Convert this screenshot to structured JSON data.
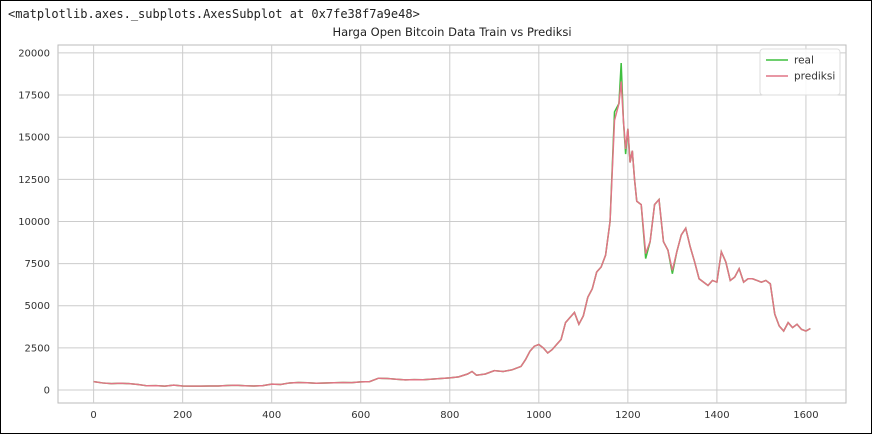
{
  "output_text": "<matplotlib.axes._subplots.AxesSubplot at 0x7fe38f7a9e48>",
  "chart_data": {
    "type": "line",
    "title": "Harga Open Bitcoin Data Train vs Prediksi",
    "x": [
      0,
      20,
      40,
      60,
      80,
      100,
      120,
      140,
      160,
      180,
      200,
      220,
      240,
      260,
      280,
      300,
      320,
      340,
      360,
      380,
      400,
      420,
      440,
      460,
      480,
      500,
      520,
      540,
      560,
      580,
      600,
      620,
      640,
      660,
      680,
      700,
      720,
      740,
      760,
      780,
      800,
      820,
      840,
      850,
      860,
      880,
      900,
      920,
      940,
      960,
      970,
      980,
      990,
      1000,
      1010,
      1020,
      1030,
      1040,
      1050,
      1060,
      1070,
      1080,
      1090,
      1100,
      1110,
      1120,
      1130,
      1140,
      1150,
      1160,
      1170,
      1180,
      1185,
      1190,
      1195,
      1200,
      1205,
      1210,
      1215,
      1220,
      1230,
      1240,
      1250,
      1260,
      1270,
      1280,
      1290,
      1300,
      1310,
      1320,
      1330,
      1340,
      1350,
      1360,
      1370,
      1380,
      1390,
      1400,
      1410,
      1420,
      1430,
      1440,
      1450,
      1460,
      1470,
      1480,
      1490,
      1500,
      1510,
      1520,
      1530,
      1540,
      1550,
      1560,
      1570,
      1580,
      1590,
      1600,
      1610
    ],
    "series": [
      {
        "name": "real",
        "color": "#3fbf3f",
        "values": [
          500,
          420,
          380,
          400,
          380,
          330,
          250,
          260,
          230,
          290,
          240,
          230,
          230,
          240,
          240,
          270,
          280,
          250,
          240,
          260,
          350,
          330,
          420,
          450,
          430,
          400,
          420,
          430,
          450,
          440,
          480,
          500,
          700,
          680,
          640,
          600,
          620,
          610,
          650,
          680,
          720,
          780,
          950,
          1100,
          880,
          950,
          1150,
          1100,
          1200,
          1400,
          1800,
          2300,
          2600,
          2700,
          2500,
          2200,
          2400,
          2700,
          3000,
          4000,
          4300,
          4600,
          3900,
          4400,
          5500,
          6000,
          7000,
          7300,
          8000,
          10000,
          16500,
          17000,
          19400,
          16000,
          14000,
          15500,
          13500,
          14200,
          12500,
          11200,
          11000,
          7800,
          8800,
          11000,
          11300,
          8800,
          8300,
          6900,
          8200,
          9200,
          9600,
          8500,
          7600,
          6600,
          6400,
          6200,
          6500,
          6400,
          8200,
          7600,
          6500,
          6700,
          7200,
          6400,
          6600,
          6600,
          6500,
          6400,
          6500,
          6300,
          4500,
          3800,
          3500,
          4000,
          3700,
          3900,
          3600,
          3500,
          3650
        ]
      },
      {
        "name": "prediksi",
        "color": "#e07585",
        "values": [
          500,
          420,
          380,
          400,
          380,
          330,
          250,
          260,
          230,
          290,
          240,
          230,
          230,
          240,
          240,
          270,
          280,
          250,
          240,
          260,
          350,
          330,
          420,
          450,
          430,
          400,
          420,
          430,
          450,
          440,
          480,
          500,
          700,
          680,
          640,
          600,
          620,
          610,
          650,
          680,
          720,
          780,
          950,
          1100,
          880,
          950,
          1150,
          1100,
          1200,
          1400,
          1800,
          2300,
          2600,
          2700,
          2500,
          2200,
          2400,
          2700,
          3000,
          4000,
          4300,
          4600,
          3900,
          4400,
          5500,
          6000,
          7000,
          7300,
          8000,
          10000,
          16000,
          17000,
          18300,
          16000,
          14300,
          15500,
          13500,
          14200,
          12500,
          11200,
          11000,
          8100,
          8800,
          11000,
          11300,
          8800,
          8300,
          7100,
          8200,
          9200,
          9600,
          8500,
          7600,
          6600,
          6400,
          6200,
          6500,
          6400,
          8200,
          7600,
          6500,
          6700,
          7200,
          6400,
          6600,
          6600,
          6500,
          6400,
          6500,
          6300,
          4500,
          3800,
          3500,
          4000,
          3700,
          3900,
          3600,
          3500,
          3650
        ]
      }
    ],
    "xlim": [
      -80,
      1690
    ],
    "ylim": [
      -770,
      20470
    ],
    "xticks": [
      0,
      200,
      400,
      600,
      800,
      1000,
      1200,
      1400,
      1600
    ],
    "yticks": [
      0,
      2500,
      5000,
      7500,
      10000,
      12500,
      15000,
      17500,
      20000
    ],
    "grid": true,
    "legend": "upper right"
  }
}
